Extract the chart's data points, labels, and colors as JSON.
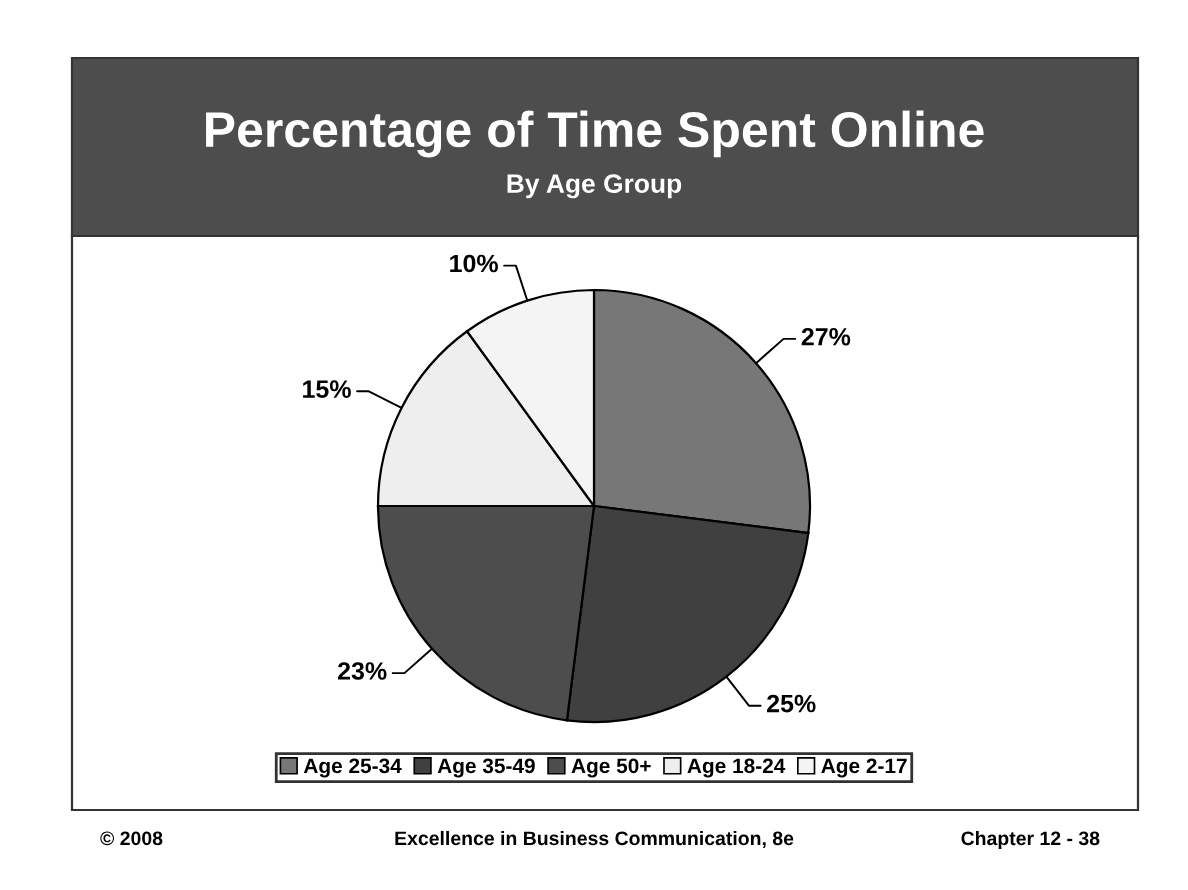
{
  "chart_data": {
    "type": "pie",
    "title": "Percentage of Time Spent Online",
    "subtitle": "By Age Group",
    "categories": [
      "Age 25-34",
      "Age 35-49",
      "Age 50+",
      "Age 18-24",
      "Age 2-17"
    ],
    "values": [
      27,
      25,
      23,
      15,
      10
    ],
    "value_labels": [
      "27%",
      "25%",
      "23%",
      "15%",
      "10%"
    ],
    "colors": [
      "#777777",
      "#404040",
      "#4d4d4d",
      "#eeeeee",
      "#f4f4f4"
    ],
    "legend": "bottom",
    "annotations": [
      "© 2008",
      "Excellence in Business Communication, 8e",
      "Chapter 12 - 38"
    ]
  }
}
